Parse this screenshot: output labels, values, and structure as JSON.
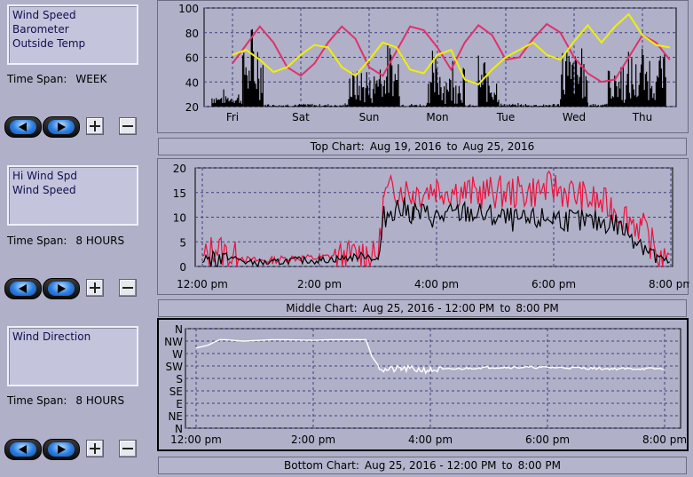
{
  "panels": [
    {
      "series_list": [
        "Wind Speed",
        "Barometer",
        "Outside Temp"
      ],
      "time_span_label": "Time Span:",
      "time_span": "WEEK",
      "caption": {
        "prefix": "Top Chart:",
        "start": "Aug 19, 2016",
        "to": "to",
        "end": "Aug 25, 2016"
      }
    },
    {
      "series_list": [
        "Hi Wind Spd",
        "Wind Speed"
      ],
      "time_span_label": "Time Span:",
      "time_span": "8 HOURS",
      "caption": {
        "prefix": "Middle Chart:",
        "start": "Aug 25, 2016 - 12:00 PM",
        "to": "to",
        "end": "8:00 PM"
      }
    },
    {
      "series_list": [
        "Wind Direction"
      ],
      "time_span_label": "Time Span:",
      "time_span": "8 HOURS",
      "caption": {
        "prefix": "Bottom Chart:",
        "start": "Aug 25, 2016 - 12:00 PM",
        "to": "to",
        "end": "8:00 PM"
      }
    }
  ],
  "colors": {
    "plot_bg": "#b0b0c8",
    "grid": "#404080",
    "black": "#000000",
    "pink": "#e0306a",
    "yellow": "#f0f000",
    "red": "#f0103c",
    "white": "#ffffff"
  },
  "icons": {
    "prev": "left-arrow-icon",
    "next": "right-arrow-icon",
    "zoom_in": "plus-icon",
    "zoom_out": "minus-icon"
  },
  "chart_data": [
    {
      "type": "line",
      "title": "",
      "x_labels": [
        "Fri",
        "Sat",
        "Sun",
        "Mon",
        "Tue",
        "Wed",
        "Thu"
      ],
      "ylim": [
        20,
        100
      ],
      "y_ticks": [
        20,
        40,
        60,
        80,
        100
      ],
      "grid": true,
      "series": [
        {
          "color": "pink",
          "x": [
            0,
            0.2,
            0.4,
            0.6,
            0.8,
            1.0,
            1.2,
            1.4,
            1.6,
            1.8,
            2.0,
            2.2,
            2.4,
            2.6,
            2.8,
            3.0,
            3.2,
            3.4,
            3.6,
            3.8,
            4.0,
            4.2,
            4.4,
            4.6,
            4.8,
            5.0,
            5.2,
            5.4,
            5.6,
            5.8,
            6.0,
            6.2,
            6.4
          ],
          "values": [
            55,
            70,
            85,
            72,
            52,
            45,
            55,
            72,
            85,
            75,
            52,
            45,
            65,
            85,
            82,
            68,
            50,
            72,
            86,
            78,
            58,
            60,
            75,
            87,
            80,
            60,
            47,
            40,
            42,
            60,
            78,
            72,
            58
          ]
        },
        {
          "color": "yellow",
          "x": [
            0,
            0.2,
            0.4,
            0.6,
            0.8,
            1.0,
            1.2,
            1.4,
            1.6,
            1.8,
            2.0,
            2.2,
            2.4,
            2.6,
            2.8,
            3.0,
            3.2,
            3.4,
            3.6,
            3.8,
            4.0,
            4.2,
            4.4,
            4.6,
            4.8,
            5.0,
            5.2,
            5.4,
            5.6,
            5.8,
            6.0,
            6.2,
            6.4
          ],
          "values": [
            62,
            66,
            58,
            48,
            52,
            62,
            70,
            68,
            52,
            45,
            58,
            72,
            68,
            50,
            47,
            62,
            66,
            42,
            38,
            50,
            60,
            66,
            72,
            62,
            58,
            73,
            86,
            72,
            85,
            95,
            78,
            70,
            68
          ]
        },
        {
          "color": "black",
          "style": "spiky",
          "segments": [
            {
              "x0": -0.3,
              "x1": 0.15,
              "base": 22,
              "peak": 35
            },
            {
              "x0": 0.15,
              "x1": 0.45,
              "base": 25,
              "peak": 93
            },
            {
              "x0": 0.45,
              "x1": 1.7,
              "base": 20,
              "peak": 23
            },
            {
              "x0": 1.7,
              "x1": 2.1,
              "base": 22,
              "peak": 58
            },
            {
              "x0": 2.1,
              "x1": 2.45,
              "base": 28,
              "peak": 75
            },
            {
              "x0": 2.45,
              "x1": 2.85,
              "base": 20,
              "peak": 23
            },
            {
              "x0": 2.85,
              "x1": 3.4,
              "base": 22,
              "peak": 73
            },
            {
              "x0": 3.4,
              "x1": 3.6,
              "base": 20,
              "peak": 22
            },
            {
              "x0": 3.6,
              "x1": 3.9,
              "base": 22,
              "peak": 70
            },
            {
              "x0": 3.9,
              "x1": 4.8,
              "base": 20,
              "peak": 23
            },
            {
              "x0": 4.8,
              "x1": 5.2,
              "base": 25,
              "peak": 85
            },
            {
              "x0": 5.2,
              "x1": 5.5,
              "base": 20,
              "peak": 24
            },
            {
              "x0": 5.5,
              "x1": 5.95,
              "base": 22,
              "peak": 70
            },
            {
              "x0": 5.95,
              "x1": 6.35,
              "base": 25,
              "peak": 78
            }
          ]
        }
      ]
    },
    {
      "type": "line",
      "title": "",
      "x_labels": [
        "12:00 pm",
        "2:00 pm",
        "4:00 pm",
        "6:00 pm",
        "8:00 pm"
      ],
      "xlim": [
        0,
        8
      ],
      "ylim": [
        0,
        20
      ],
      "y_ticks": [
        0,
        5,
        10,
        15,
        20
      ],
      "grid": true,
      "series": [
        {
          "name": "Hi Wind Spd",
          "color": "red",
          "x": [
            0,
            0.2,
            0.5,
            0.8,
            1.2,
            1.5,
            2.0,
            2.5,
            2.8,
            3.0,
            3.1,
            3.3,
            3.6,
            4.0,
            4.5,
            5.0,
            5.5,
            6.0,
            6.5,
            7.0,
            7.5,
            7.8,
            8.0
          ],
          "values": [
            1,
            4,
            2,
            0.5,
            0.5,
            1,
            1,
            2,
            3,
            1,
            14,
            16,
            15,
            16,
            15,
            15,
            15,
            16,
            14,
            12,
            8,
            2,
            1
          ]
        },
        {
          "name": "Wind Speed",
          "color": "black",
          "x": [
            0,
            0.2,
            0.5,
            0.8,
            1.2,
            1.5,
            2.0,
            2.5,
            2.8,
            3.0,
            3.1,
            3.3,
            3.6,
            4.0,
            4.5,
            5.0,
            5.5,
            6.0,
            6.5,
            7.0,
            7.5,
            7.8,
            8.0
          ],
          "values": [
            0.5,
            2,
            1,
            0,
            0,
            0.5,
            0.5,
            1,
            1.5,
            0.5,
            10,
            12,
            11,
            10,
            11,
            10,
            9,
            10,
            9,
            9,
            5,
            1,
            0
          ]
        }
      ]
    },
    {
      "type": "line",
      "title": "",
      "x_labels": [
        "12:00 pm",
        "2:00 pm",
        "4:00 pm",
        "6:00 pm",
        "8:00 pm"
      ],
      "xlim": [
        0,
        8
      ],
      "y_labels": [
        "N",
        "NW",
        "W",
        "SW",
        "S",
        "SE",
        "E",
        "NE",
        "N"
      ],
      "y_values": [
        360,
        315,
        270,
        225,
        180,
        135,
        90,
        45,
        0
      ],
      "ylim": [
        0,
        360
      ],
      "grid": true,
      "series": [
        {
          "name": "Wind Direction",
          "color": "white",
          "x": [
            0,
            0.2,
            0.4,
            0.5,
            0.8,
            1.3,
            1.5,
            2.0,
            2.3,
            2.6,
            2.9,
            3.0,
            3.1,
            3.2,
            3.5,
            4.0,
            4.5,
            5.0,
            5.5,
            6.0,
            6.5,
            7.0,
            7.5,
            8.0
          ],
          "values": [
            290,
            300,
            320,
            320,
            315,
            320,
            320,
            318,
            320,
            320,
            320,
            260,
            230,
            210,
            215,
            210,
            215,
            220,
            220,
            220,
            218,
            215,
            215,
            215
          ]
        }
      ]
    }
  ]
}
